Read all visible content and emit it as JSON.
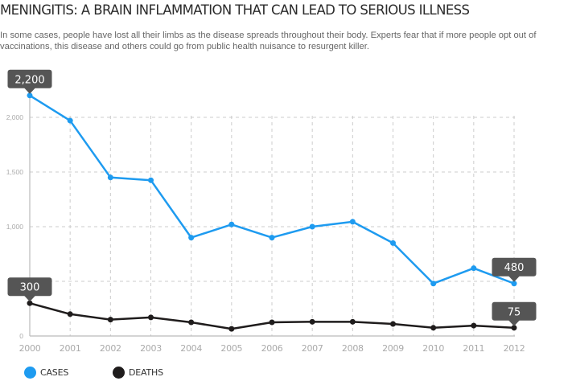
{
  "title": "MENINGITIS: A BRAIN INFLAMMATION THAT CAN LEAD TO SERIOUS ILLNESS",
  "subtitle": "In some cases, people have lost all their limbs as the disease spreads throughout their body. Experts fear that if more people opt out of vaccinations, this disease and others could go from public health nuisance to resurgent killer.",
  "colors": {
    "cases": "#1e9bf0",
    "deaths": "#1f1c1c",
    "callout": "#555555",
    "grid": "#cccccc",
    "axis": "#bbbbbb",
    "tick_text": "#aaaaaa"
  },
  "chart_data": {
    "type": "line",
    "title": "MENINGITIS: A BRAIN INFLAMMATION THAT CAN LEAD TO SERIOUS ILLNESS",
    "xlabel": "",
    "ylabel": "",
    "x": [
      "2000",
      "2001",
      "2002",
      "2003",
      "2004",
      "2005",
      "2006",
      "2007",
      "2008",
      "2009",
      "2010",
      "2011",
      "2012"
    ],
    "ylim": [
      0,
      2200
    ],
    "yticks": [
      0,
      500,
      1000,
      1500,
      2000
    ],
    "ytick_labels": [
      "0",
      "500",
      "1,000",
      "1,500",
      "2,000"
    ],
    "grid": true,
    "legend_position": "bottom-left",
    "series": [
      {
        "name": "CASES",
        "color": "#1e9bf0",
        "values": [
          2200,
          1970,
          1450,
          1425,
          900,
          1020,
          900,
          1000,
          1045,
          850,
          480,
          620,
          480
        ]
      },
      {
        "name": "DEATHS",
        "color": "#1f1c1c",
        "values": [
          300,
          200,
          150,
          170,
          125,
          65,
          125,
          130,
          130,
          110,
          75,
          95,
          75
        ]
      }
    ],
    "annotations": [
      {
        "series": "CASES",
        "x": "2000",
        "label": "2,200"
      },
      {
        "series": "CASES",
        "x": "2012",
        "label": "480"
      },
      {
        "series": "DEATHS",
        "x": "2000",
        "label": "300"
      },
      {
        "series": "DEATHS",
        "x": "2012",
        "label": "75"
      }
    ]
  },
  "legend": [
    {
      "label": "CASES",
      "color": "#1e9bf0"
    },
    {
      "label": "DEATHS",
      "color": "#1f1c1c"
    }
  ]
}
